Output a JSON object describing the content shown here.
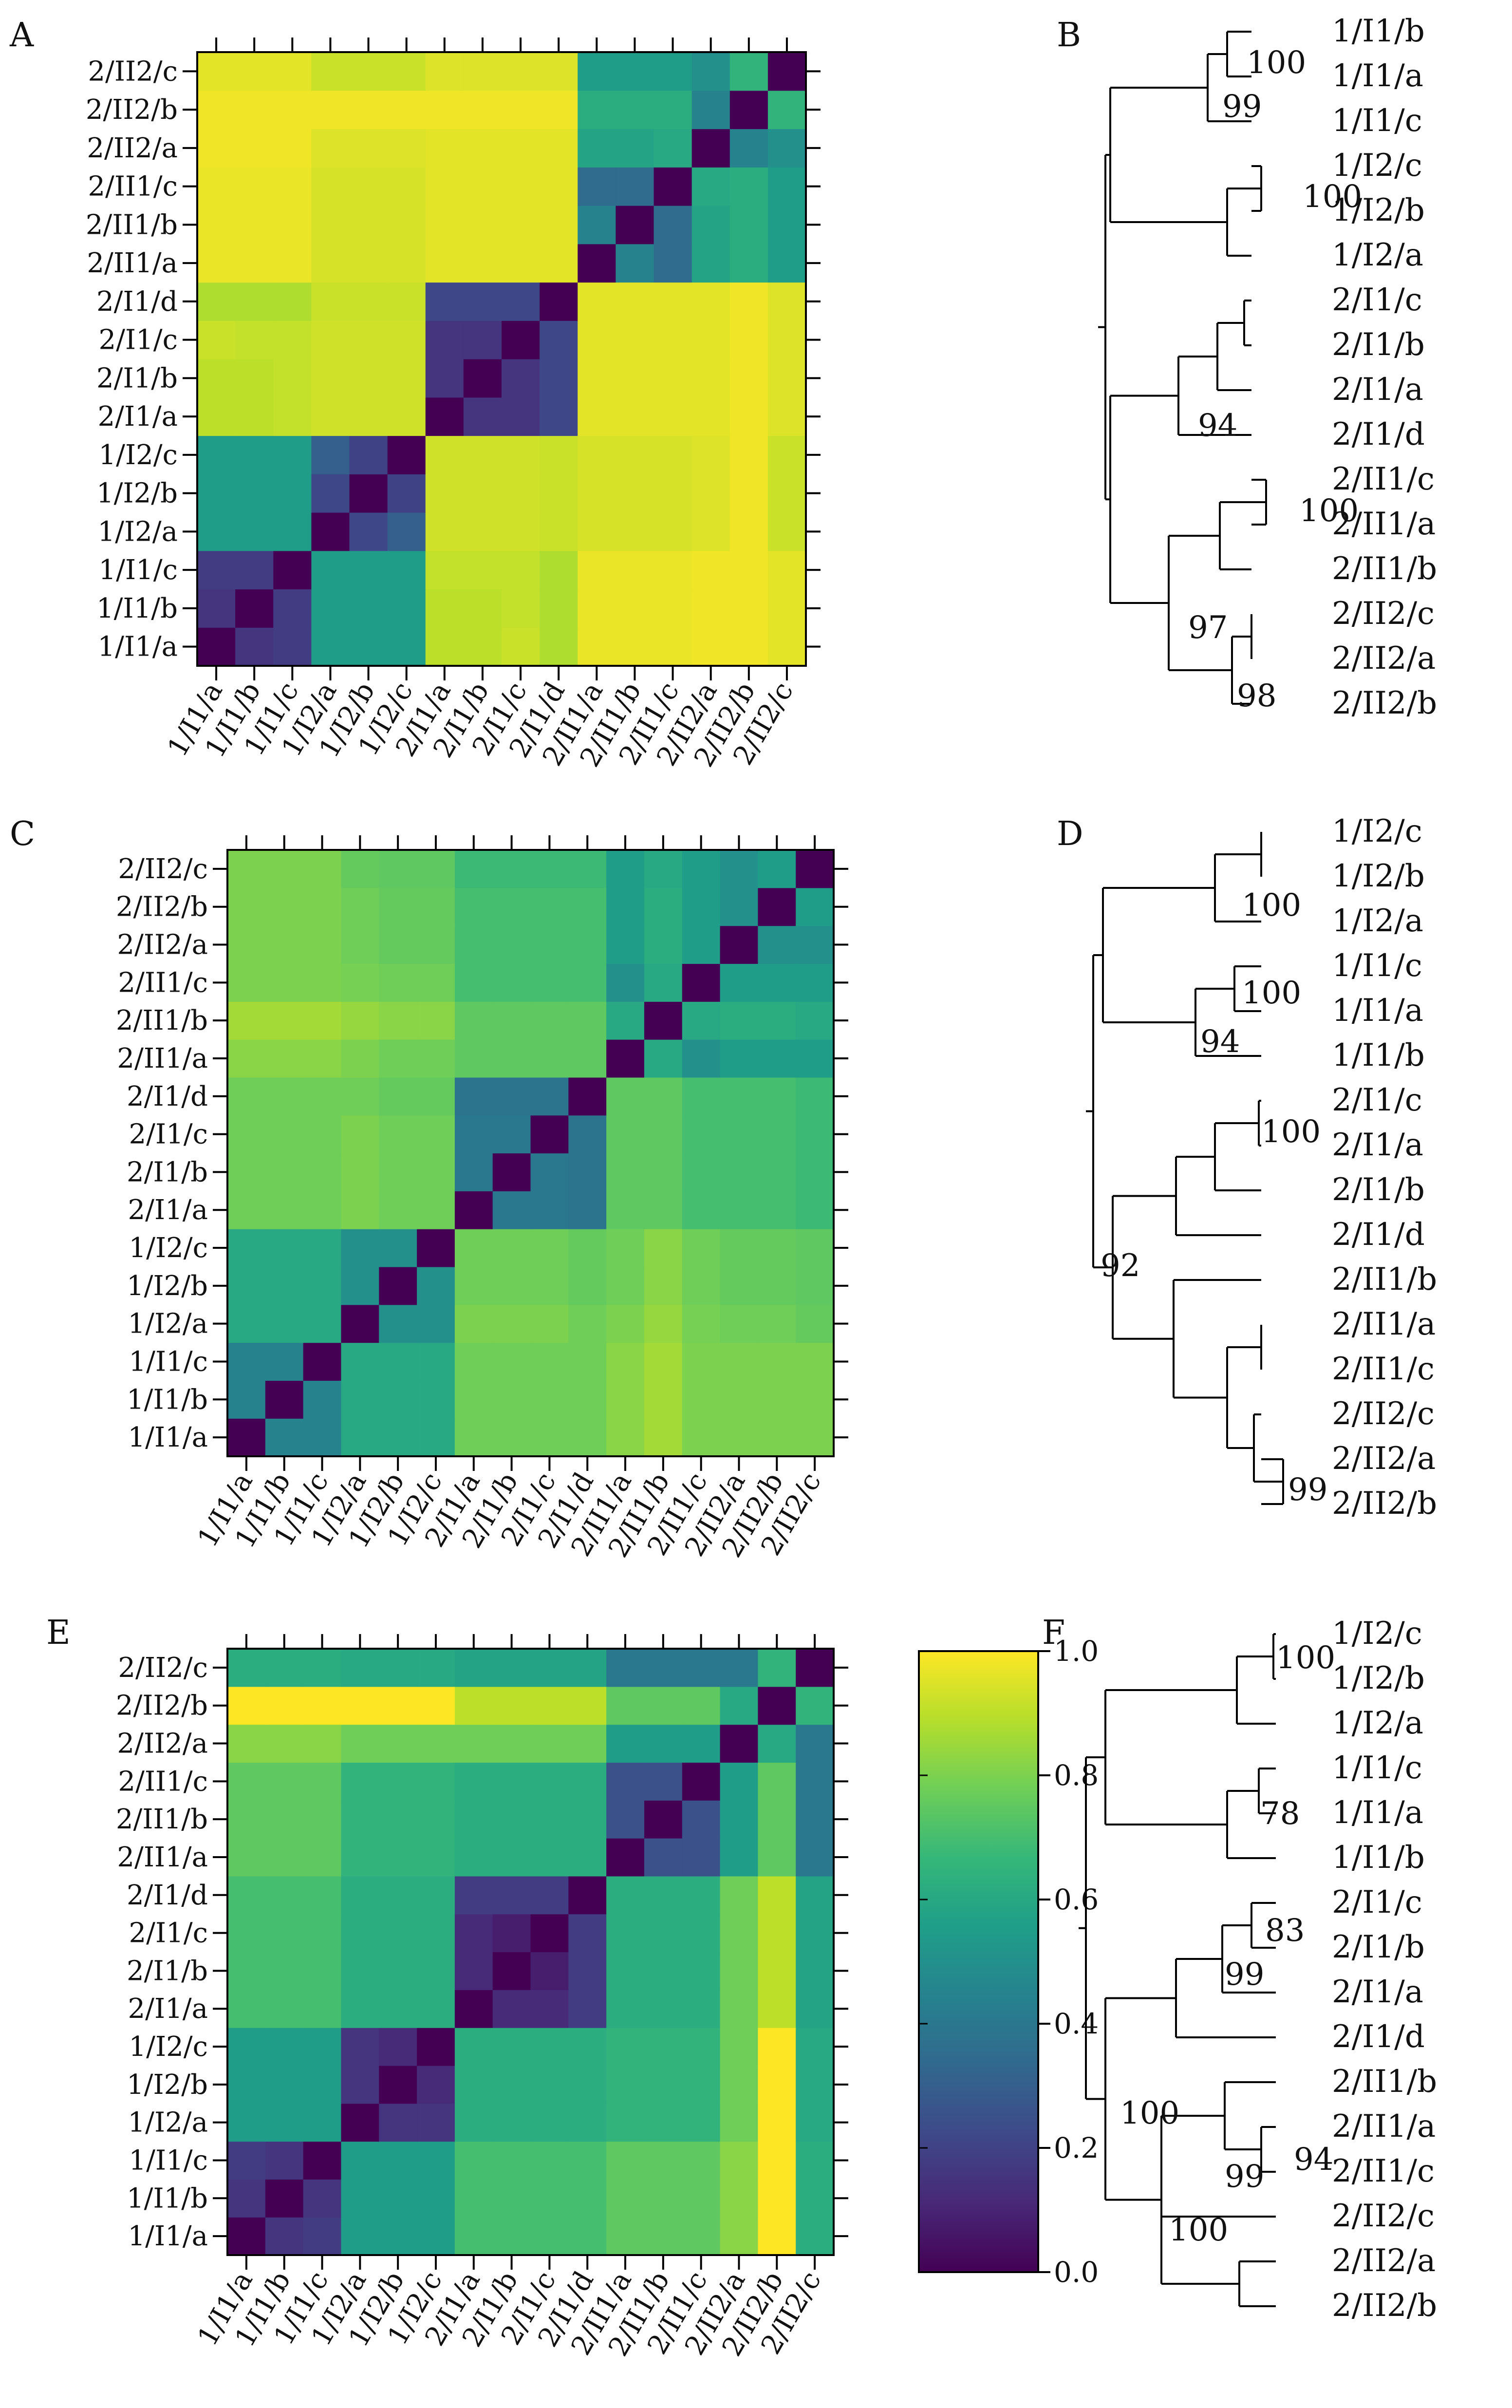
{
  "chart_data": [
    {
      "panel": "A",
      "type": "heatmap",
      "labels": [
        "1/I1/a",
        "1/I1/b",
        "1/I1/c",
        "1/I2/a",
        "1/I2/b",
        "1/I2/c",
        "2/I1/a",
        "2/I1/b",
        "2/I1/c",
        "2/I1/d",
        "2/II1/a",
        "2/II1/b",
        "2/II1/c",
        "2/II2/a",
        "2/II2/b",
        "2/II2/c"
      ],
      "vmin": 0.0,
      "vmax": 1.0,
      "matrix": [
        [
          0.0,
          0.15,
          0.18,
          0.55,
          0.55,
          0.55,
          0.9,
          0.9,
          0.92,
          0.88,
          0.97,
          0.97,
          0.97,
          0.98,
          0.98,
          0.96
        ],
        [
          0.15,
          0.0,
          0.18,
          0.55,
          0.55,
          0.55,
          0.9,
          0.9,
          0.91,
          0.88,
          0.97,
          0.97,
          0.97,
          0.98,
          0.98,
          0.96
        ],
        [
          0.18,
          0.18,
          0.0,
          0.55,
          0.55,
          0.55,
          0.91,
          0.91,
          0.91,
          0.88,
          0.97,
          0.97,
          0.97,
          0.98,
          0.98,
          0.96
        ],
        [
          0.55,
          0.55,
          0.55,
          0.0,
          0.22,
          0.3,
          0.93,
          0.93,
          0.93,
          0.92,
          0.94,
          0.94,
          0.94,
          0.95,
          0.98,
          0.92
        ],
        [
          0.55,
          0.55,
          0.55,
          0.22,
          0.0,
          0.2,
          0.93,
          0.93,
          0.93,
          0.92,
          0.94,
          0.94,
          0.94,
          0.95,
          0.98,
          0.92
        ],
        [
          0.55,
          0.55,
          0.55,
          0.3,
          0.2,
          0.0,
          0.93,
          0.93,
          0.93,
          0.92,
          0.94,
          0.94,
          0.94,
          0.95,
          0.98,
          0.92
        ],
        [
          0.9,
          0.9,
          0.91,
          0.93,
          0.93,
          0.93,
          0.0,
          0.15,
          0.15,
          0.22,
          0.96,
          0.96,
          0.96,
          0.96,
          0.98,
          0.95
        ],
        [
          0.9,
          0.9,
          0.91,
          0.93,
          0.93,
          0.93,
          0.15,
          0.0,
          0.15,
          0.22,
          0.96,
          0.96,
          0.96,
          0.96,
          0.98,
          0.95
        ],
        [
          0.92,
          0.91,
          0.91,
          0.93,
          0.93,
          0.93,
          0.15,
          0.15,
          0.0,
          0.22,
          0.96,
          0.96,
          0.96,
          0.96,
          0.98,
          0.95
        ],
        [
          0.88,
          0.88,
          0.88,
          0.92,
          0.92,
          0.92,
          0.22,
          0.22,
          0.22,
          0.0,
          0.96,
          0.96,
          0.96,
          0.96,
          0.98,
          0.95
        ],
        [
          0.97,
          0.97,
          0.97,
          0.94,
          0.94,
          0.94,
          0.96,
          0.96,
          0.96,
          0.96,
          0.0,
          0.45,
          0.35,
          0.58,
          0.62,
          0.55
        ],
        [
          0.97,
          0.97,
          0.97,
          0.94,
          0.94,
          0.94,
          0.96,
          0.96,
          0.96,
          0.96,
          0.45,
          0.0,
          0.35,
          0.58,
          0.62,
          0.55
        ],
        [
          0.97,
          0.97,
          0.97,
          0.94,
          0.94,
          0.94,
          0.96,
          0.96,
          0.96,
          0.96,
          0.35,
          0.35,
          0.0,
          0.6,
          0.62,
          0.55
        ],
        [
          0.98,
          0.98,
          0.98,
          0.95,
          0.95,
          0.95,
          0.96,
          0.96,
          0.96,
          0.96,
          0.58,
          0.58,
          0.6,
          0.0,
          0.45,
          0.5
        ],
        [
          0.98,
          0.98,
          0.98,
          0.98,
          0.98,
          0.98,
          0.98,
          0.98,
          0.98,
          0.98,
          0.62,
          0.62,
          0.62,
          0.45,
          0.0,
          0.65
        ],
        [
          0.96,
          0.96,
          0.96,
          0.92,
          0.92,
          0.92,
          0.95,
          0.95,
          0.95,
          0.95,
          0.55,
          0.55,
          0.55,
          0.5,
          0.65,
          0.0
        ]
      ]
    },
    {
      "panel": "C",
      "type": "heatmap",
      "labels": [
        "1/I1/a",
        "1/I1/b",
        "1/I1/c",
        "1/I2/a",
        "1/I2/b",
        "1/I2/c",
        "2/I1/a",
        "2/I1/b",
        "2/I1/c",
        "2/I1/d",
        "2/II1/a",
        "2/II1/b",
        "2/II1/c",
        "2/II2/a",
        "2/II2/b",
        "2/II2/c"
      ],
      "vmin": 0.0,
      "vmax": 1.0,
      "matrix": [
        [
          0.0,
          0.45,
          0.45,
          0.6,
          0.6,
          0.6,
          0.78,
          0.78,
          0.78,
          0.78,
          0.82,
          0.86,
          0.8,
          0.8,
          0.8,
          0.8
        ],
        [
          0.45,
          0.0,
          0.45,
          0.6,
          0.6,
          0.6,
          0.78,
          0.78,
          0.78,
          0.78,
          0.82,
          0.86,
          0.8,
          0.8,
          0.8,
          0.8
        ],
        [
          0.45,
          0.45,
          0.0,
          0.6,
          0.6,
          0.6,
          0.78,
          0.78,
          0.78,
          0.78,
          0.82,
          0.86,
          0.8,
          0.8,
          0.8,
          0.8
        ],
        [
          0.6,
          0.6,
          0.6,
          0.0,
          0.5,
          0.5,
          0.8,
          0.8,
          0.8,
          0.78,
          0.8,
          0.84,
          0.79,
          0.78,
          0.78,
          0.76
        ],
        [
          0.6,
          0.6,
          0.6,
          0.5,
          0.0,
          0.5,
          0.78,
          0.78,
          0.78,
          0.76,
          0.78,
          0.82,
          0.78,
          0.76,
          0.76,
          0.75
        ],
        [
          0.6,
          0.6,
          0.6,
          0.5,
          0.5,
          0.0,
          0.78,
          0.78,
          0.78,
          0.76,
          0.78,
          0.82,
          0.78,
          0.76,
          0.76,
          0.75
        ],
        [
          0.78,
          0.78,
          0.78,
          0.8,
          0.78,
          0.78,
          0.0,
          0.4,
          0.4,
          0.38,
          0.75,
          0.75,
          0.7,
          0.7,
          0.7,
          0.68
        ],
        [
          0.78,
          0.78,
          0.78,
          0.8,
          0.78,
          0.78,
          0.4,
          0.0,
          0.4,
          0.38,
          0.75,
          0.75,
          0.7,
          0.7,
          0.7,
          0.68
        ],
        [
          0.78,
          0.78,
          0.78,
          0.8,
          0.78,
          0.78,
          0.4,
          0.4,
          0.0,
          0.38,
          0.75,
          0.75,
          0.7,
          0.7,
          0.7,
          0.68
        ],
        [
          0.78,
          0.78,
          0.78,
          0.78,
          0.76,
          0.76,
          0.38,
          0.38,
          0.38,
          0.0,
          0.75,
          0.75,
          0.7,
          0.7,
          0.7,
          0.68
        ],
        [
          0.82,
          0.82,
          0.82,
          0.8,
          0.78,
          0.78,
          0.75,
          0.75,
          0.75,
          0.75,
          0.0,
          0.6,
          0.5,
          0.55,
          0.55,
          0.55
        ],
        [
          0.86,
          0.86,
          0.86,
          0.84,
          0.82,
          0.82,
          0.75,
          0.75,
          0.75,
          0.75,
          0.6,
          0.0,
          0.6,
          0.62,
          0.62,
          0.6
        ],
        [
          0.8,
          0.8,
          0.8,
          0.79,
          0.78,
          0.78,
          0.7,
          0.7,
          0.7,
          0.7,
          0.5,
          0.6,
          0.0,
          0.55,
          0.55,
          0.55
        ],
        [
          0.8,
          0.8,
          0.8,
          0.78,
          0.76,
          0.76,
          0.7,
          0.7,
          0.7,
          0.7,
          0.55,
          0.62,
          0.55,
          0.0,
          0.5,
          0.5
        ],
        [
          0.8,
          0.8,
          0.8,
          0.78,
          0.76,
          0.76,
          0.7,
          0.7,
          0.7,
          0.7,
          0.55,
          0.62,
          0.55,
          0.5,
          0.0,
          0.55
        ],
        [
          0.8,
          0.8,
          0.8,
          0.76,
          0.75,
          0.75,
          0.68,
          0.68,
          0.68,
          0.68,
          0.55,
          0.6,
          0.55,
          0.5,
          0.55,
          0.0
        ]
      ]
    },
    {
      "panel": "E",
      "type": "heatmap",
      "labels": [
        "1/I1/a",
        "1/I1/b",
        "1/I1/c",
        "1/I2/a",
        "1/I2/b",
        "1/I2/c",
        "2/I1/a",
        "2/I1/b",
        "2/I1/c",
        "2/I1/d",
        "2/II1/a",
        "2/II1/b",
        "2/II1/c",
        "2/II2/a",
        "2/II2/b",
        "2/II2/c"
      ],
      "vmin": 0.0,
      "vmax": 1.0,
      "colorbar_ticks": [
        "0.0",
        "0.2",
        "0.4",
        "0.6",
        "0.8",
        "1.0"
      ],
      "matrix": [
        [
          0.0,
          0.15,
          0.18,
          0.55,
          0.55,
          0.55,
          0.7,
          0.7,
          0.7,
          0.7,
          0.75,
          0.75,
          0.75,
          0.82,
          1.0,
          0.62
        ],
        [
          0.15,
          0.0,
          0.15,
          0.55,
          0.55,
          0.55,
          0.7,
          0.7,
          0.7,
          0.7,
          0.75,
          0.75,
          0.75,
          0.82,
          1.0,
          0.62
        ],
        [
          0.18,
          0.15,
          0.0,
          0.55,
          0.55,
          0.55,
          0.7,
          0.7,
          0.7,
          0.7,
          0.75,
          0.75,
          0.75,
          0.82,
          1.0,
          0.62
        ],
        [
          0.55,
          0.55,
          0.55,
          0.0,
          0.15,
          0.15,
          0.62,
          0.62,
          0.62,
          0.62,
          0.65,
          0.65,
          0.65,
          0.78,
          1.0,
          0.6
        ],
        [
          0.55,
          0.55,
          0.55,
          0.15,
          0.0,
          0.12,
          0.62,
          0.62,
          0.62,
          0.62,
          0.65,
          0.65,
          0.65,
          0.78,
          1.0,
          0.6
        ],
        [
          0.55,
          0.55,
          0.55,
          0.15,
          0.12,
          0.0,
          0.62,
          0.62,
          0.62,
          0.62,
          0.65,
          0.65,
          0.65,
          0.78,
          1.0,
          0.6
        ],
        [
          0.7,
          0.7,
          0.7,
          0.62,
          0.62,
          0.62,
          0.0,
          0.12,
          0.12,
          0.18,
          0.62,
          0.62,
          0.62,
          0.78,
          0.9,
          0.58
        ],
        [
          0.7,
          0.7,
          0.7,
          0.62,
          0.62,
          0.62,
          0.12,
          0.0,
          0.08,
          0.18,
          0.62,
          0.62,
          0.62,
          0.78,
          0.9,
          0.58
        ],
        [
          0.7,
          0.7,
          0.7,
          0.62,
          0.62,
          0.62,
          0.12,
          0.08,
          0.0,
          0.18,
          0.62,
          0.62,
          0.62,
          0.78,
          0.9,
          0.58
        ],
        [
          0.7,
          0.7,
          0.7,
          0.62,
          0.62,
          0.62,
          0.18,
          0.18,
          0.18,
          0.0,
          0.62,
          0.62,
          0.62,
          0.78,
          0.9,
          0.58
        ],
        [
          0.75,
          0.75,
          0.75,
          0.65,
          0.65,
          0.65,
          0.62,
          0.62,
          0.62,
          0.62,
          0.0,
          0.25,
          0.25,
          0.55,
          0.75,
          0.4
        ],
        [
          0.75,
          0.75,
          0.75,
          0.65,
          0.65,
          0.65,
          0.62,
          0.62,
          0.62,
          0.62,
          0.25,
          0.0,
          0.25,
          0.55,
          0.75,
          0.4
        ],
        [
          0.75,
          0.75,
          0.75,
          0.65,
          0.65,
          0.65,
          0.62,
          0.62,
          0.62,
          0.62,
          0.25,
          0.25,
          0.0,
          0.55,
          0.75,
          0.4
        ],
        [
          0.82,
          0.82,
          0.82,
          0.78,
          0.78,
          0.78,
          0.78,
          0.78,
          0.78,
          0.78,
          0.55,
          0.55,
          0.55,
          0.0,
          0.6,
          0.4
        ],
        [
          1.0,
          1.0,
          1.0,
          1.0,
          1.0,
          1.0,
          0.9,
          0.9,
          0.9,
          0.9,
          0.75,
          0.75,
          0.75,
          0.6,
          0.0,
          0.65
        ],
        [
          0.62,
          0.62,
          0.62,
          0.6,
          0.6,
          0.6,
          0.58,
          0.58,
          0.58,
          0.58,
          0.4,
          0.4,
          0.4,
          0.4,
          0.65,
          0.0
        ]
      ]
    },
    {
      "panel": "B",
      "type": "dendrogram",
      "leaves": [
        "1/I1/b",
        "1/I1/a",
        "1/I1/c",
        "1/I2/c",
        "1/I2/b",
        "1/I2/a",
        "2/I1/c",
        "2/I1/b",
        "2/I1/a",
        "2/I1/d",
        "2/II1/c",
        "2/II1/a",
        "2/II1/b",
        "2/II2/c",
        "2/II2/a",
        "2/II2/b"
      ],
      "bootstrap_labels": [
        "100",
        "99",
        "100",
        "94",
        "100",
        "97",
        "98"
      ]
    },
    {
      "panel": "D",
      "type": "dendrogram",
      "leaves": [
        "1/I2/c",
        "1/I2/b",
        "1/I2/a",
        "1/I1/c",
        "1/I1/a",
        "1/I1/b",
        "2/I1/c",
        "2/I1/a",
        "2/I1/b",
        "2/I1/d",
        "2/II1/b",
        "2/II1/a",
        "2/II1/c",
        "2/II2/c",
        "2/II2/a",
        "2/II2/b"
      ],
      "bootstrap_labels": [
        "100",
        "100",
        "94",
        "100",
        "92",
        "99"
      ]
    },
    {
      "panel": "F",
      "type": "dendrogram",
      "leaves": [
        "1/I2/c",
        "1/I2/b",
        "1/I2/a",
        "1/I1/c",
        "1/I1/a",
        "1/I1/b",
        "2/I1/c",
        "2/I1/b",
        "2/I1/a",
        "2/I1/d",
        "2/II1/b",
        "2/II1/a",
        "2/II1/c",
        "2/II2/c",
        "2/II2/a",
        "2/II2/b"
      ],
      "bootstrap_labels": [
        "100",
        "78",
        "83",
        "99",
        "100",
        "99",
        "94",
        "100"
      ]
    }
  ],
  "panel_letters": [
    "A",
    "B",
    "C",
    "D",
    "E",
    "F"
  ],
  "colormap": [
    "#440154",
    "#482878",
    "#3e4989",
    "#31688e",
    "#26828e",
    "#1f9e89",
    "#35b779",
    "#6ece58",
    "#b5de2b",
    "#fde725"
  ]
}
